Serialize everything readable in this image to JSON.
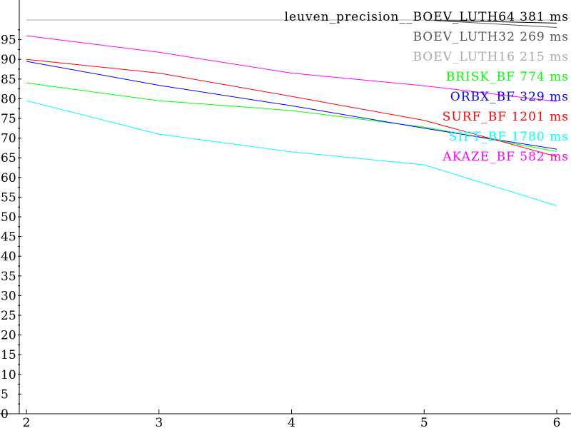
{
  "chart_data": {
    "type": "line",
    "title": "leuven_precision",
    "xlabel": "",
    "ylabel": "",
    "x": [
      2,
      3,
      4,
      5,
      6
    ],
    "xlim": [
      2,
      6
    ],
    "ylim": [
      0,
      100
    ],
    "x_ticks": [
      "2",
      "3",
      "4",
      "5",
      "6"
    ],
    "y_ticks": [
      "0",
      "5",
      "10",
      "15",
      "20",
      "25",
      "30",
      "35",
      "40",
      "45",
      "50",
      "55",
      "60",
      "65",
      "70",
      "75",
      "80",
      "85",
      "90",
      "95"
    ],
    "grid": false,
    "legend_position": "top-right",
    "series": [
      {
        "name": "BOEV_LUTH64",
        "timing": "381 ms",
        "color": "#000000",
        "values": [
          100,
          100,
          100,
          100,
          99.2
        ]
      },
      {
        "name": "BOEV_LUTH32",
        "timing": "269 ms",
        "color": "#555555",
        "values": [
          100,
          100,
          100,
          100,
          98.1
        ]
      },
      {
        "name": "BOEV_LUTH16",
        "timing": "215 ms",
        "color": "#aaaaaa",
        "values": [
          100,
          100,
          100,
          100,
          100
        ]
      },
      {
        "name": "BRISK_BF",
        "timing": "774 ms",
        "color": "#00ff00",
        "values": [
          84,
          79.5,
          77,
          72.8,
          66.6
        ]
      },
      {
        "name": "ORBX_BF",
        "timing": "329 ms",
        "color": "#0000ff",
        "values": [
          89.5,
          83.4,
          78.2,
          72.5,
          67.2
        ]
      },
      {
        "name": "SURF_BF",
        "timing": "1201 ms",
        "color": "#ff0000",
        "values": [
          90,
          86.5,
          80.6,
          74.5,
          65.3
        ]
      },
      {
        "name": "SIFT_BF",
        "timing": "1780 ms",
        "color": "#00ffff",
        "values": [
          79.5,
          71,
          66.5,
          63.2,
          52.8
        ]
      },
      {
        "name": "AKAZE_BF",
        "timing": "582 ms",
        "color": "#ff00ff",
        "values": [
          96,
          91.8,
          86.5,
          83.3,
          79.3
        ]
      }
    ]
  }
}
